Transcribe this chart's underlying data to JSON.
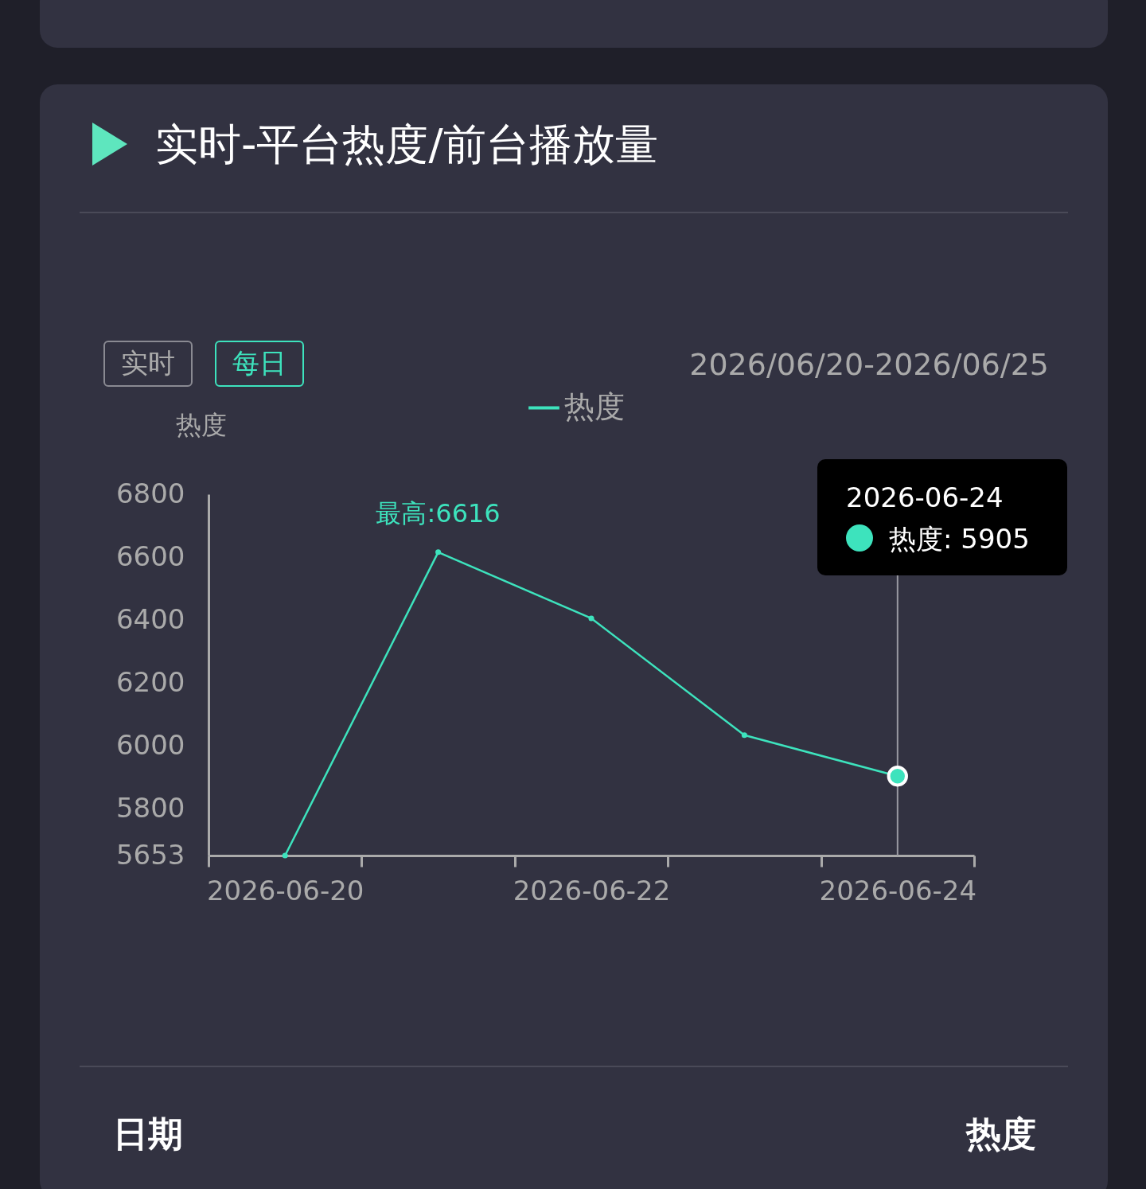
{
  "chart_data": {
    "type": "line",
    "title": "实时-平台热度/前台播放量",
    "ylabel": "热度",
    "categories": [
      "2026-06-20",
      null,
      "2026-06-22",
      null,
      "2026-06-24"
    ],
    "series": [
      {
        "name": "热度",
        "color": "#3de3bd",
        "values": [
          5653,
          6616,
          6406,
          6035,
          5905
        ]
      }
    ],
    "ylim": [
      5653,
      6800
    ],
    "yticks": [
      {
        "value": 5653,
        "label": "5653"
      },
      {
        "value": 5800,
        "label": "5800"
      },
      {
        "value": 6000,
        "label": "6000"
      },
      {
        "value": 6200,
        "label": "6200"
      },
      {
        "value": 6400,
        "label": "6400"
      },
      {
        "value": 6600,
        "label": "6600"
      },
      {
        "value": 6800,
        "label": "6800"
      }
    ],
    "marker": "circle",
    "legend": "top",
    "ref_lines": [
      {
        "axis": "x",
        "value": "2026-06-24",
        "color": "#9a9aa3"
      }
    ],
    "annotations": [
      "实时",
      "每日",
      "2026/06/20-2026/06/25",
      {
        "text": "最高:6616",
        "y": 6616
      },
      "2026-06-24",
      "热度: 5905",
      "日期",
      "热度"
    ]
  }
}
